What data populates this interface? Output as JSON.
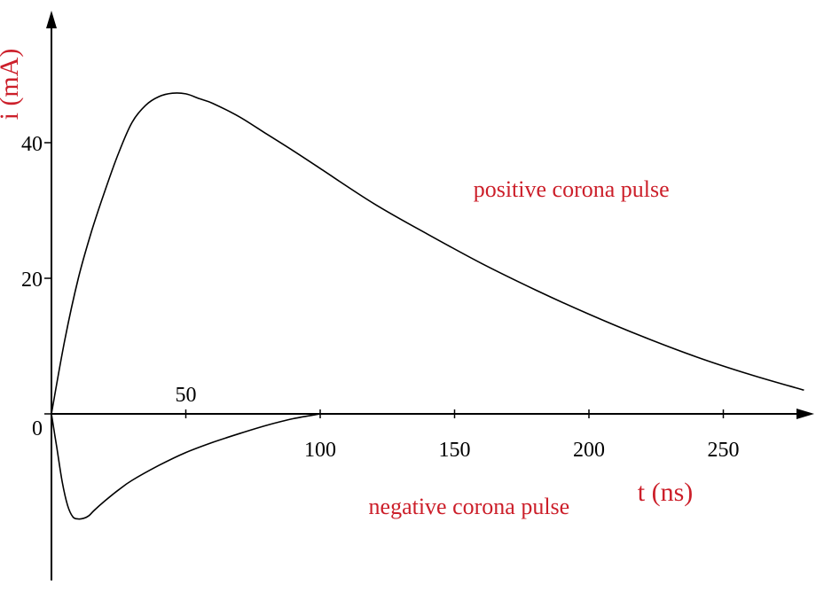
{
  "chart_data": {
    "type": "line",
    "title": "",
    "xlabel": "t (ns)",
    "ylabel": "i (mA)",
    "xlim": [
      0,
      285
    ],
    "ylim": [
      -22,
      52
    ],
    "x_ticks": [
      {
        "value": 50,
        "label": "50"
      },
      {
        "value": 100,
        "label": "100"
      },
      {
        "value": 150,
        "label": "150"
      },
      {
        "value": 200,
        "label": "200"
      },
      {
        "value": 250,
        "label": "250"
      }
    ],
    "y_ticks": [
      {
        "value": 0,
        "label": "0"
      },
      {
        "value": 20,
        "label": "20"
      },
      {
        "value": 40,
        "label": "40"
      }
    ],
    "grid": false,
    "series": [
      {
        "name": "positive corona pulse",
        "x": [
          0,
          5,
          10,
          15,
          20,
          25,
          30,
          35,
          40,
          45,
          50,
          55,
          60,
          70,
          80,
          90,
          100,
          120,
          140,
          160,
          180,
          200,
          220,
          240,
          260,
          280
        ],
        "y": [
          0,
          11,
          20,
          27,
          33,
          38.5,
          43,
          45.5,
          46.8,
          47.3,
          47.2,
          46.5,
          45.8,
          43.8,
          41.3,
          38.8,
          36.2,
          31,
          26.5,
          22.2,
          18.3,
          14.7,
          11.4,
          8.4,
          5.8,
          3.5
        ]
      },
      {
        "name": "negative corona pulse",
        "x": [
          0,
          2,
          4,
          6,
          8,
          10,
          12,
          14,
          16,
          20,
          25,
          30,
          40,
          50,
          60,
          70,
          80,
          90,
          100
        ],
        "y": [
          0,
          -5,
          -10,
          -13.5,
          -15.2,
          -15.5,
          -15.4,
          -15,
          -14.2,
          -12.8,
          -11.2,
          -9.8,
          -7.6,
          -5.7,
          -4.2,
          -2.9,
          -1.7,
          -0.7,
          0
        ]
      }
    ],
    "annotations": [
      {
        "text": "positive corona pulse",
        "x": 157,
        "y": 32
      },
      {
        "text": "negative corona pulse",
        "x": 118,
        "y": -14.8
      }
    ],
    "colors": {
      "axis": "#000000",
      "curve": "#000000",
      "annotation": "#cc1f2a"
    }
  }
}
